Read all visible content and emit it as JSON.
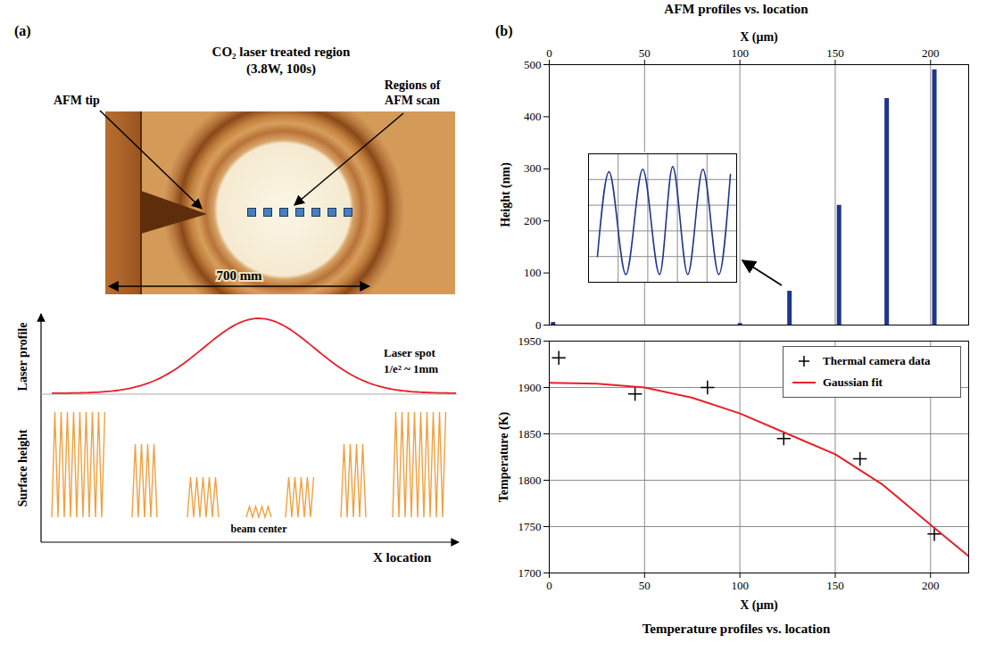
{
  "panel_a": {
    "letter": "(a)",
    "title": "CO₂ laser treated region",
    "subtitle": "(3.8W, 100s)",
    "tip_label": "AFM tip",
    "scan_label": "Regions of AFM scan",
    "scale_label": "700 mm",
    "profile_axis": "Laser profile",
    "height_axis": "Surface height",
    "x_axis": "X location",
    "spot_label": "Laser spot",
    "spot_size": "1/e² ~ 1mm",
    "center_label": "beam center"
  },
  "panel_b": {
    "letter": "(b)"
  },
  "chart_data": [
    {
      "type": "bar",
      "title": "AFM profiles vs. location",
      "x_label": "X (μm)",
      "y_label": "Height (nm)",
      "x": [
        2,
        100,
        126,
        152,
        177,
        202
      ],
      "values": [
        5,
        3,
        65,
        230,
        435,
        490
      ],
      "color": "#1f3690",
      "xlim": [
        0,
        220
      ],
      "xticks": [
        0,
        50,
        100,
        150,
        200
      ],
      "ylim": [
        0,
        500
      ],
      "yticks": [
        0,
        100,
        200,
        300,
        400,
        500
      ],
      "grid": "x"
    },
    {
      "type": "line",
      "x": [
        0.3,
        0.69,
        1.26,
        1.83,
        2.4,
        2.84,
        3.35,
        3.86,
        4.4,
        4.79
      ],
      "values": [
        1.0,
        4.3,
        0.3,
        4.4,
        0.3,
        4.5,
        0.3,
        4.4,
        0.3,
        4.2
      ],
      "color": "#1f3690",
      "xlim": [
        0,
        5
      ],
      "xticks": [
        0,
        1,
        2,
        3,
        4,
        5
      ],
      "ylim": [
        0,
        5
      ],
      "yticks": [
        0,
        1,
        2,
        3,
        4,
        5
      ],
      "grid": true,
      "tick_labels": false
    },
    {
      "type": "scatter",
      "title": "Temperature profiles vs. location",
      "x_label": "X (μm)",
      "y_label": "Temperature (K)",
      "series": [
        {
          "name": "Thermal camera data",
          "type": "scatter",
          "marker": "plus",
          "color": "#000000",
          "x": [
            5,
            45,
            83,
            123,
            163,
            202
          ],
          "values": [
            1932,
            1893,
            1900,
            1845,
            1823,
            1742
          ]
        },
        {
          "name": "Gaussian fit",
          "type": "line",
          "color": "#e8202a",
          "x": [
            0,
            25,
            50,
            75,
            100,
            125,
            150,
            175,
            200,
            220
          ],
          "values": [
            1905,
            1904,
            1900,
            1889,
            1872,
            1850,
            1828,
            1795,
            1752,
            1718
          ]
        }
      ],
      "xlim": [
        0,
        220
      ],
      "xticks": [
        0,
        50,
        100,
        150,
        200
      ],
      "ylim": [
        1700,
        1950
      ],
      "yticks": [
        1700,
        1750,
        1800,
        1850,
        1900,
        1950
      ],
      "grid": true,
      "legend": "top-right"
    }
  ]
}
